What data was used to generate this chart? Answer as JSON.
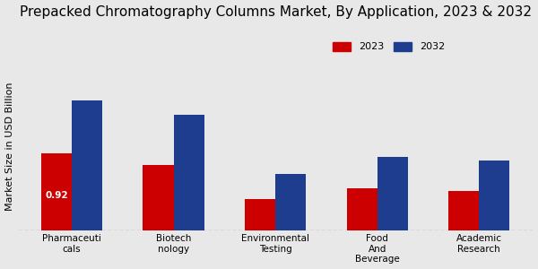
{
  "title": "Prepacked Chromatography Columns Market, By Application, 2023 & 2032",
  "categories": [
    "Pharmaceuti\ncals",
    "Biotech\nnology",
    "Environmental\nTesting",
    "Food\nAnd\nBeverage",
    "Academic\nResearch"
  ],
  "values_2023": [
    0.92,
    0.78,
    0.38,
    0.5,
    0.47
  ],
  "values_2032": [
    1.55,
    1.38,
    0.68,
    0.88,
    0.84
  ],
  "color_2023": "#cc0000",
  "color_2032": "#1e3d8f",
  "ylabel": "Market Size in USD Billion",
  "bar_annotation": "0.92",
  "ylim": [
    0,
    2.0
  ],
  "background_color": "#e8e8e8",
  "legend_labels": [
    "2023",
    "2032"
  ],
  "title_fontsize": 11,
  "axis_label_fontsize": 8,
  "tick_fontsize": 7.5
}
